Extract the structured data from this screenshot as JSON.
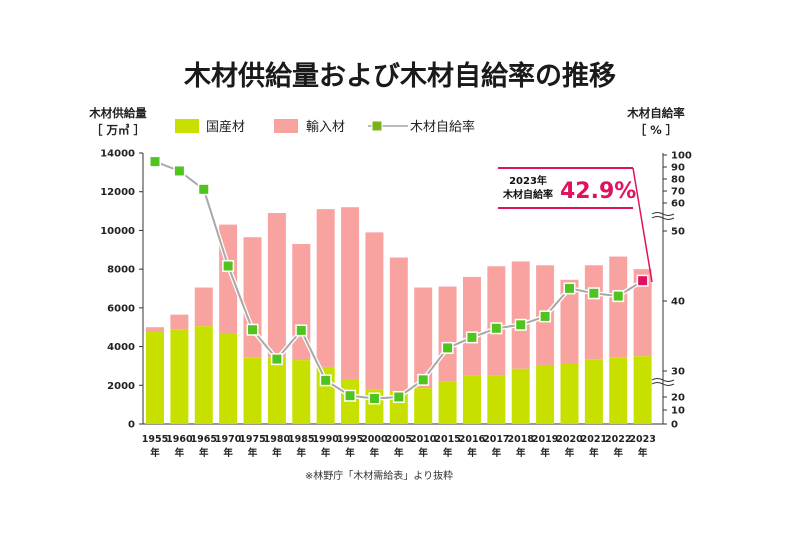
{
  "chart_data": {
    "type": "bar+line",
    "title": "木材供給量および木材自給率の推移",
    "left_axis": {
      "title_line1": "木材供給量",
      "title_line2": "［ 万㎥ ］",
      "ylim": [
        0,
        14000
      ],
      "ticks": [
        "0",
        "2000",
        "4000",
        "6000",
        "8000",
        "10000",
        "12000",
        "14000"
      ]
    },
    "right_axis": {
      "title_line1": "木材自給率",
      "title_line2": "［ % ］",
      "ticks": [
        "0",
        "10",
        "20",
        "30",
        "40",
        "50",
        "60",
        "70",
        "80",
        "90",
        "100"
      ]
    },
    "categories": [
      "1955",
      "1960",
      "1965",
      "1970",
      "1975",
      "1980",
      "1985",
      "1990",
      "1995",
      "2000",
      "2005",
      "2010",
      "2015",
      "2016",
      "2017",
      "2018",
      "2019",
      "2020",
      "2021",
      "2022",
      "2023"
    ],
    "year_suffix": "年",
    "series": [
      {
        "name": "国産材",
        "color": "#c8e000",
        "values": [
          4750,
          4900,
          5050,
          4650,
          3450,
          3450,
          3300,
          2950,
          2300,
          1800,
          1700,
          1850,
          2200,
          2500,
          2500,
          2850,
          3050,
          3100,
          3350,
          3450,
          3500
        ]
      },
      {
        "name": "輸入材",
        "color": "#f9a3a1",
        "values": [
          250,
          750,
          2000,
          5650,
          6200,
          7450,
          6000,
          8150,
          8900,
          8100,
          6900,
          5200,
          4900,
          5100,
          5650,
          5550,
          5150,
          4350,
          4850,
          5200,
          4500
        ]
      },
      {
        "name": "木材自給率",
        "color": "#7ab317",
        "values": [
          94.5,
          86.7,
          71.4,
          45.0,
          35.9,
          31.7,
          35.8,
          26.4,
          20.5,
          18.9,
          20.0,
          26.6,
          33.3,
          34.8,
          36.1,
          36.6,
          37.8,
          41.8,
          41.1,
          40.7,
          42.9
        ]
      }
    ],
    "legend": [
      {
        "label": "国産材",
        "color": "#c8e000"
      },
      {
        "label": "輸入材",
        "color": "#f9a3a1"
      },
      {
        "label": "木材自給率",
        "color": "#7ab317"
      }
    ],
    "legend_placement": "top",
    "callout": {
      "label_year": "2023年",
      "label_text": "木材自給率",
      "value_text": "42.9%",
      "color": "#e0115f"
    },
    "source": "※林野庁「木材需給表」より抜粋"
  }
}
